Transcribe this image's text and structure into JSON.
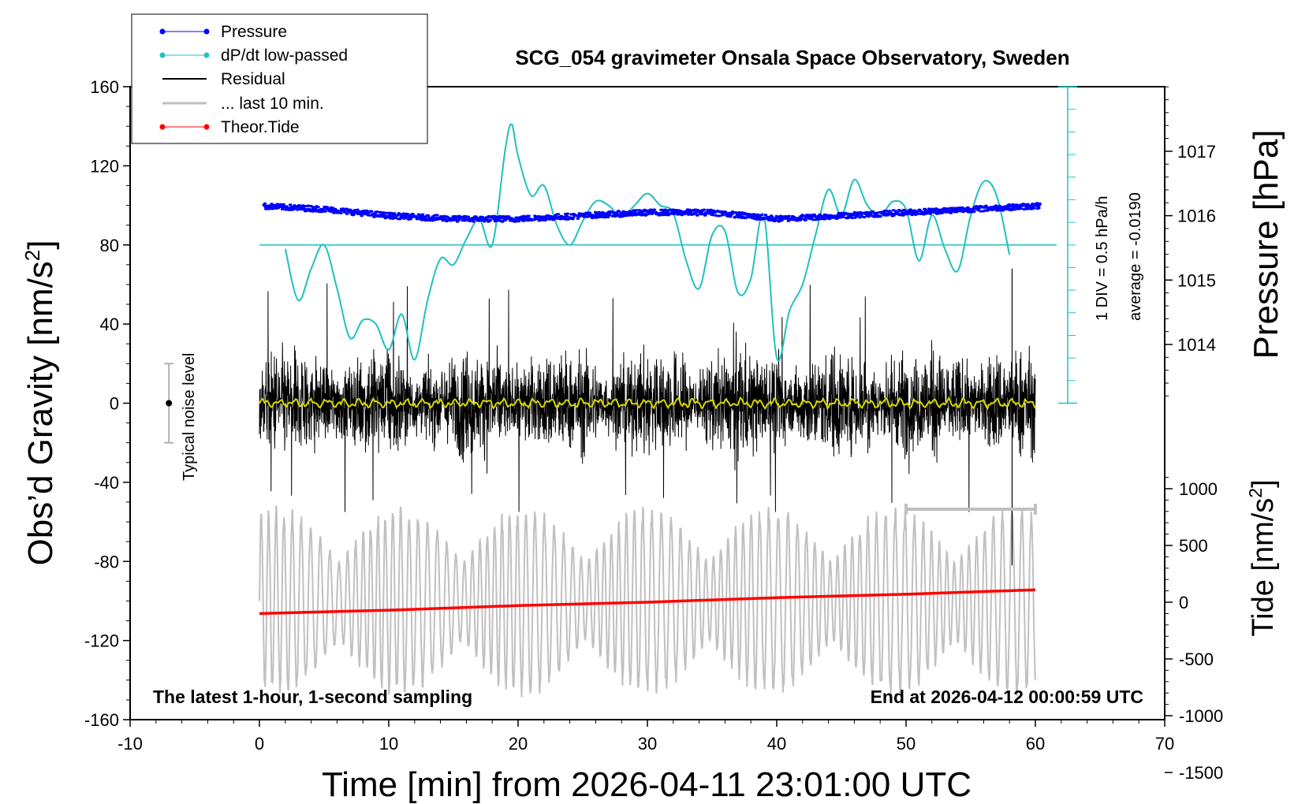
{
  "chart_data": {
    "type": "line",
    "title": "SCG_054 gravimeter Onsala Space Observatory, Sweden",
    "xlabel": "Time [min] from 2026-04-11 23:01:00 UTC",
    "ylabel_left_main": "Obs’d Gravity [nm/s",
    "ylabel_left_sup": "2",
    "ylabel_left_end": "]",
    "ylabel_right_top": "Pressure [hPa]",
    "ylabel_right_bottom_main": "Tide [nm/s",
    "ylabel_right_bottom_sup": "2",
    "ylabel_right_bottom_end": "]",
    "xlim": [
      -10,
      70
    ],
    "ylim": [
      -160,
      160
    ],
    "pressure_lim": [
      1013,
      1018
    ],
    "tide_lim": [
      -1500,
      1500
    ],
    "xticks": [
      "-10",
      "0",
      "10",
      "20",
      "30",
      "40",
      "50",
      "60",
      "70"
    ],
    "yticks": [
      "-160",
      "-120",
      "-80",
      "-40",
      "0",
      "40",
      "80",
      "120",
      "160"
    ],
    "pressure_ticks": [
      "1014",
      "1015",
      "1016",
      "1017"
    ],
    "tide_ticks": [
      "-1500",
      "-1000",
      "-500",
      "0",
      "500",
      "1000"
    ],
    "legend": {
      "position": "top-left",
      "entries": [
        "Pressure",
        "dP/dt low-passed",
        "Residual",
        "... last 10 min.",
        "Theor.Tide"
      ]
    },
    "annotations": {
      "noise_label": "Typical noise level",
      "dpdt_scale": "1 DIV = 0.5 hPa/h",
      "dpdt_average": "average = -0.0190",
      "bottom_left": "The latest 1-hour, 1-second sampling",
      "bottom_right": "End at 2026-04-12 00:00:59 UTC"
    },
    "noise_level_range": [
      -20,
      20
    ],
    "last10_window_min": [
      50,
      60
    ],
    "series": [
      {
        "name": "Pressure",
        "axis": "pressure",
        "color": "#0000ff",
        "x": [
          0,
          5,
          10,
          15,
          20,
          25,
          30,
          35,
          40,
          45,
          50,
          55,
          60
        ],
        "values": [
          1016.15,
          1016.1,
          1016.0,
          1015.95,
          1015.95,
          1016.0,
          1016.05,
          1016.05,
          1015.95,
          1016.0,
          1016.05,
          1016.1,
          1016.15
        ]
      },
      {
        "name": "dP/dt low-passed",
        "axis": "gravity",
        "color": "#20c0c0",
        "x": [
          2,
          3,
          4,
          5,
          6,
          7,
          8,
          9,
          10,
          11,
          12,
          13,
          14,
          15,
          16,
          17,
          18,
          19,
          19.5,
          20,
          21,
          22,
          23,
          24,
          25,
          26,
          27,
          28,
          29,
          30,
          31,
          32,
          33,
          34,
          35,
          36,
          37,
          38,
          39,
          40,
          41,
          42,
          43,
          44,
          45,
          46,
          47,
          48,
          49,
          50,
          51,
          52,
          53,
          54,
          55,
          56,
          57,
          58
        ],
        "values": [
          78,
          52,
          68,
          80,
          58,
          33,
          42,
          40,
          27,
          45,
          22,
          52,
          73,
          70,
          83,
          93,
          80,
          128,
          141,
          125,
          105,
          110,
          90,
          80,
          92,
          102,
          100,
          94,
          100,
          106,
          100,
          96,
          72,
          58,
          85,
          87,
          56,
          63,
          95,
          23,
          47,
          60,
          85,
          108,
          95,
          113,
          100,
          95,
          102,
          98,
          72,
          95,
          78,
          67,
          95,
          112,
          105,
          75
        ]
      },
      {
        "name": "Residual",
        "axis": "gravity",
        "color": "#000000",
        "x": [
          0,
          60
        ],
        "values": [
          0,
          0
        ],
        "envelope": [
          -55,
          65
        ]
      },
      {
        "name": "... last 10 min.",
        "axis": "gravity",
        "color": "#c0c0c0",
        "x": [
          0,
          60
        ],
        "values": [
          -100,
          -100
        ],
        "envelope": [
          -155,
          -45
        ]
      },
      {
        "name": "Theor.Tide",
        "axis": "tide",
        "color": "#ff0000",
        "x": [
          0,
          10,
          20,
          30,
          40,
          50,
          60
        ],
        "values": [
          -100,
          -70,
          -30,
          0,
          40,
          70,
          110
        ]
      }
    ]
  }
}
